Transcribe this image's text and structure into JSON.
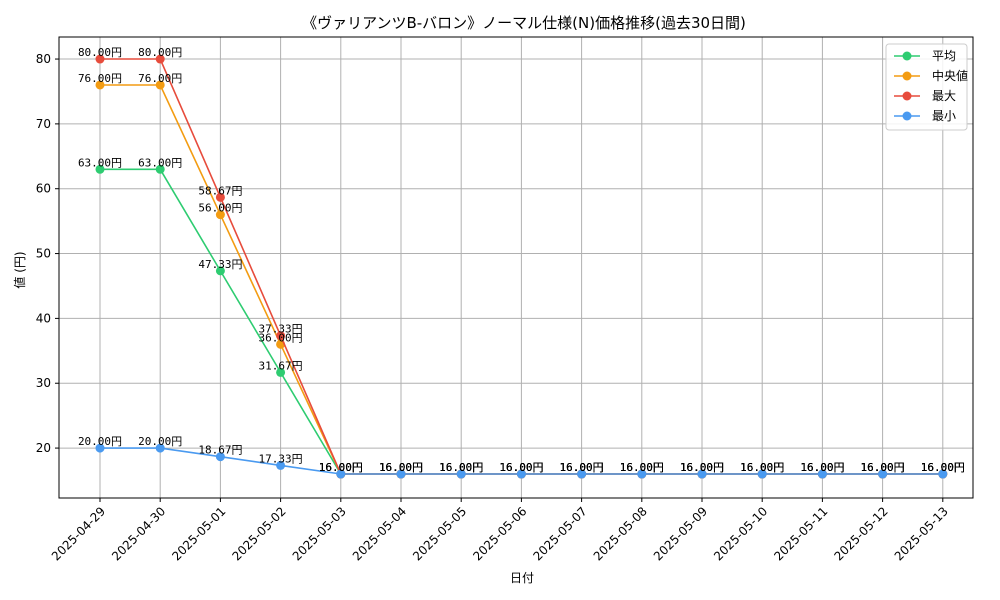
{
  "chart_data": {
    "type": "line",
    "title": "《ヴァリアンツB-バロン》ノーマル仕様(N)価格推移(過去30日間)",
    "xlabel": "日付",
    "ylabel": "値 (円)",
    "ylim": [
      12.3,
      83.4
    ],
    "y_ticks": [
      20,
      30,
      40,
      50,
      60,
      70,
      80
    ],
    "grid": true,
    "legend_position": "top-right",
    "value_suffix": "円",
    "categories": [
      "2025-04-29",
      "2025-04-30",
      "2025-05-01",
      "2025-05-02",
      "2025-05-03",
      "2025-05-04",
      "2025-05-05",
      "2025-05-06",
      "2025-05-07",
      "2025-05-08",
      "2025-05-09",
      "2025-05-10",
      "2025-05-11",
      "2025-05-12",
      "2025-05-13"
    ],
    "series": [
      {
        "name": "平均",
        "color": "#2ecc71",
        "values": [
          63.0,
          63.0,
          47.33,
          31.67,
          16.0,
          16.0,
          16.0,
          16.0,
          16.0,
          16.0,
          16.0,
          16.0,
          16.0,
          16.0,
          16.0
        ]
      },
      {
        "name": "中央値",
        "color": "#f39c12",
        "values": [
          76.0,
          76.0,
          56.0,
          36.0,
          16.0,
          16.0,
          16.0,
          16.0,
          16.0,
          16.0,
          16.0,
          16.0,
          16.0,
          16.0,
          16.0
        ]
      },
      {
        "name": "最大",
        "color": "#e74c3c",
        "values": [
          80.0,
          80.0,
          58.67,
          37.33,
          16.0,
          16.0,
          16.0,
          16.0,
          16.0,
          16.0,
          16.0,
          16.0,
          16.0,
          16.0,
          16.0
        ]
      },
      {
        "name": "最小",
        "color": "#4a9af0",
        "values": [
          20.0,
          20.0,
          18.67,
          17.33,
          16.0,
          16.0,
          16.0,
          16.0,
          16.0,
          16.0,
          16.0,
          16.0,
          16.0,
          16.0,
          16.0
        ]
      }
    ]
  }
}
